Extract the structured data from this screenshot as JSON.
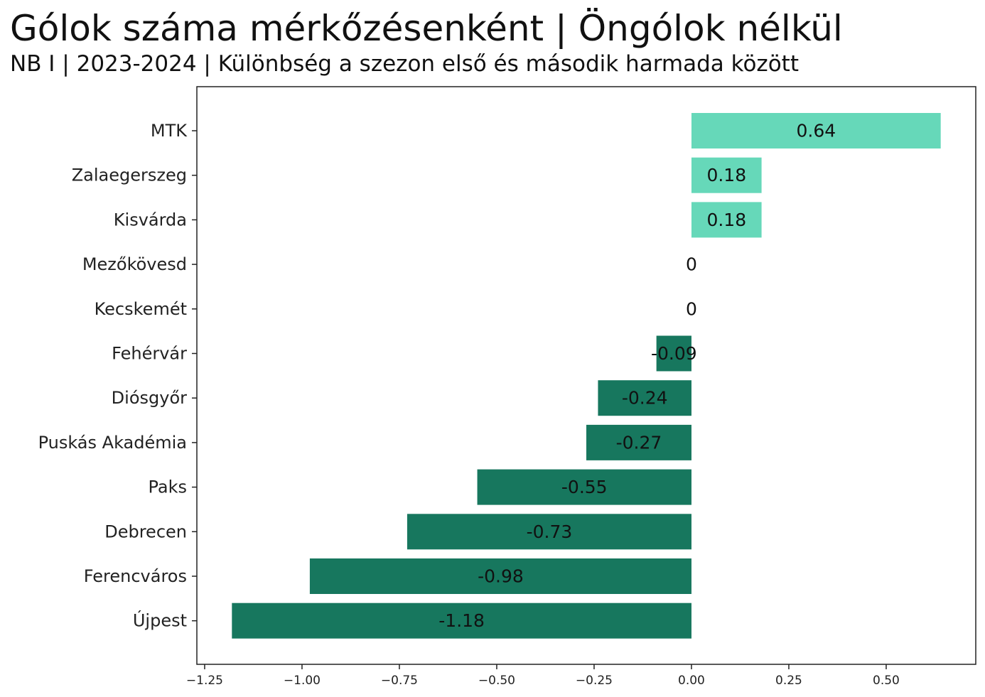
{
  "chart_data": {
    "type": "bar",
    "orientation": "horizontal",
    "title": "Gólok száma mérkőzésenként | Öngólok nélkül",
    "subtitle": "NB I | 2023-2024 | Különbség a szezon első és második harmada között",
    "categories": [
      "MTK",
      "Zalaegerszeg",
      "Kisvárda",
      "Mezőkövesd",
      "Kecskemét",
      "Fehérvár",
      "Diósgyőr",
      "Puskás Akadémia",
      "Paks",
      "Debrecen",
      "Ferencváros",
      "Újpest"
    ],
    "values": [
      0.64,
      0.18,
      0.18,
      0,
      0,
      -0.09,
      -0.24,
      -0.27,
      -0.55,
      -0.73,
      -0.98,
      -1.18
    ],
    "value_labels": [
      "0.64",
      "0.18",
      "0.18",
      "0",
      "0",
      "-0.09",
      "-0.24",
      "-0.27",
      "-0.55",
      "-0.73",
      "-0.98",
      "-1.18"
    ],
    "xticks": [
      -1.25,
      -1.0,
      -0.75,
      -0.5,
      -0.25,
      0.0,
      0.25,
      0.5
    ],
    "xtick_labels": [
      "−1.25",
      "−1.00",
      "−0.75",
      "−0.50",
      "−0.25",
      "0.00",
      "0.25",
      "0.50"
    ],
    "xlim": [
      -1.27,
      0.73
    ],
    "xlabel": "",
    "ylabel": "",
    "grid": false,
    "legend": "none",
    "colors": {
      "positive": "#66d8b9",
      "negative": "#17775e"
    }
  }
}
